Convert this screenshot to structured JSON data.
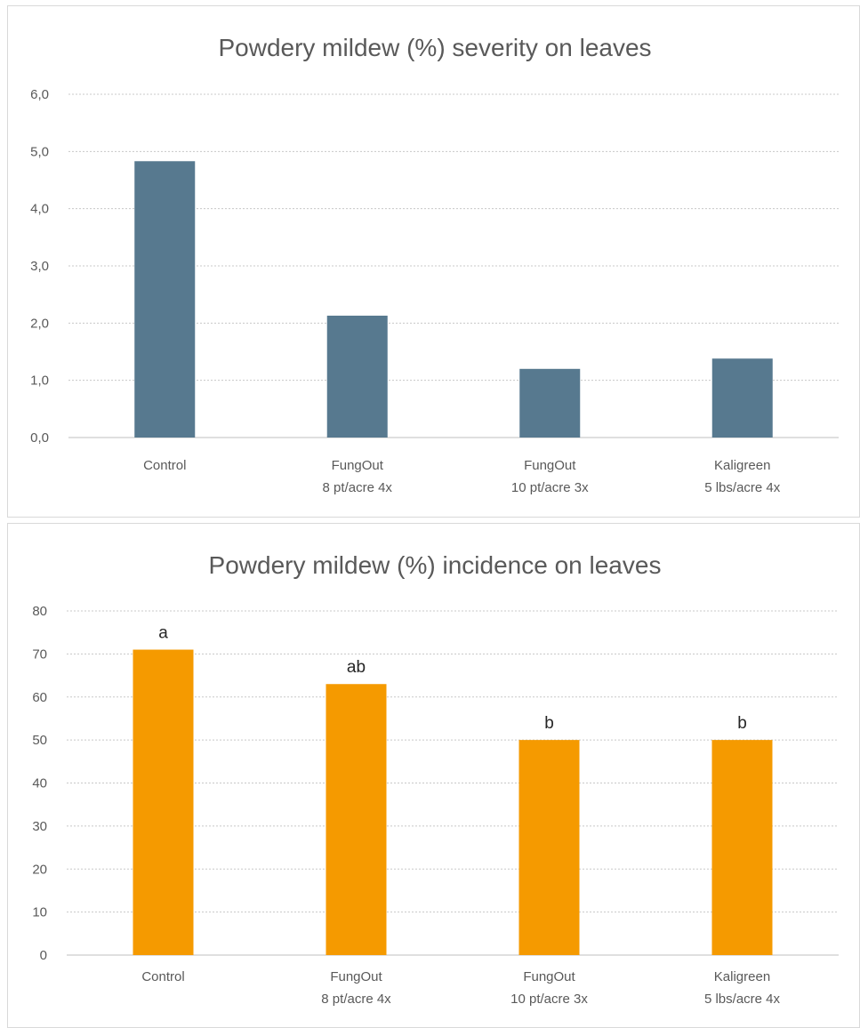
{
  "chart_data": [
    {
      "type": "bar",
      "title": "Powdery mildew (%) severity on leaves",
      "categories": [
        [
          "Control"
        ],
        [
          "FungOut",
          "8 pt/acre 4x"
        ],
        [
          "FungOut",
          "10 pt/acre 3x"
        ],
        [
          "Kaligreen",
          "5 lbs/acre 4x"
        ]
      ],
      "values": [
        4.83,
        2.13,
        1.2,
        1.38
      ],
      "ylim": [
        0,
        6
      ],
      "yticks": [
        "0,0",
        "1,0",
        "2,0",
        "3,0",
        "4,0",
        "5,0",
        "6,0"
      ],
      "xlabel": "",
      "ylabel": "",
      "bar_color": "#57798f",
      "grid": true,
      "legend": "none"
    },
    {
      "type": "bar",
      "title": "Powdery mildew (%) incidence on leaves",
      "categories": [
        [
          "Control"
        ],
        [
          "FungOut",
          "8 pt/acre 4x"
        ],
        [
          "FungOut",
          "10 pt/acre 3x"
        ],
        [
          "Kaligreen",
          "5 lbs/acre 4x"
        ]
      ],
      "values": [
        71,
        63,
        50,
        50
      ],
      "data_labels": [
        "a",
        "ab",
        "b",
        "b"
      ],
      "ylim": [
        0,
        80
      ],
      "yticks": [
        "0",
        "10",
        "20",
        "30",
        "40",
        "50",
        "60",
        "70",
        "80"
      ],
      "xlabel": "",
      "ylabel": "",
      "bar_color": "#f59a00",
      "grid": true,
      "legend": "none"
    }
  ]
}
